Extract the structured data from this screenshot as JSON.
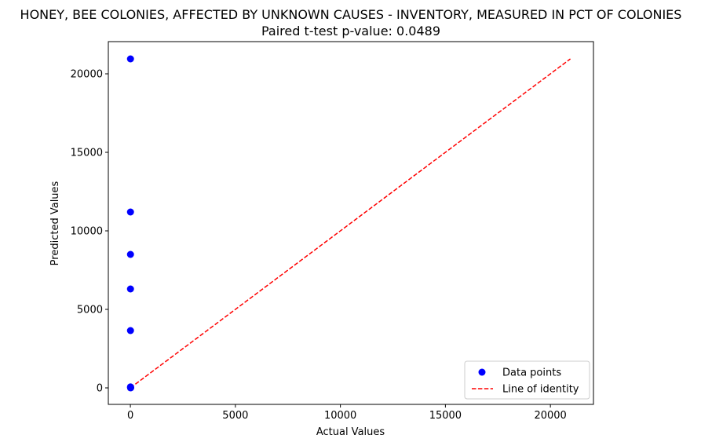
{
  "chart_data": {
    "type": "scatter",
    "title": "HONEY, BEE COLONIES, AFFECTED BY UNKNOWN CAUSES - INVENTORY, MEASURED IN PCT OF COLONIES",
    "subtitle": "Paired t-test p-value: 0.0489",
    "xlabel": "Actual Values",
    "ylabel": "Predicted Values",
    "xlim": [
      -1050,
      22050
    ],
    "ylim": [
      -1050,
      22050
    ],
    "xticks": [
      0,
      5000,
      10000,
      15000,
      20000
    ],
    "yticks": [
      0,
      5000,
      10000,
      15000,
      20000
    ],
    "xtick_labels": [
      "0",
      "5000",
      "10000",
      "15000",
      "20000"
    ],
    "ytick_labels": [
      "0",
      "5000",
      "10000",
      "15000",
      "20000"
    ],
    "grid": false,
    "legend_position": "lower right",
    "series": [
      {
        "name": "Data points",
        "kind": "scatter",
        "color": "#0000ff",
        "points": [
          {
            "x": 5,
            "y": 20950
          },
          {
            "x": 5,
            "y": 11200
          },
          {
            "x": 5,
            "y": 8500
          },
          {
            "x": 5,
            "y": 6300
          },
          {
            "x": 5,
            "y": 3650
          },
          {
            "x": 5,
            "y": 60
          },
          {
            "x": 10,
            "y": 30
          },
          {
            "x": 15,
            "y": 10
          },
          {
            "x": 8,
            "y": 5
          }
        ]
      },
      {
        "name": "Line of identity",
        "kind": "line",
        "style": "dashed",
        "color": "#ff0000",
        "points": [
          {
            "x": 0,
            "y": 0
          },
          {
            "x": 20950,
            "y": 20950
          }
        ]
      }
    ]
  }
}
